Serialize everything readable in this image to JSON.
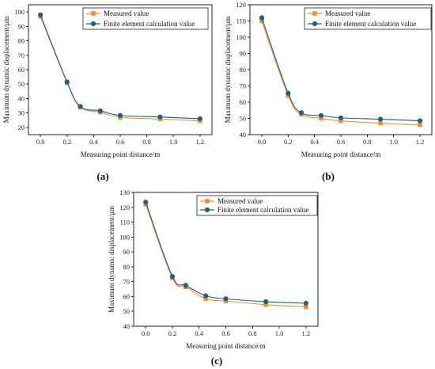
{
  "chart_data": [
    {
      "type": "line",
      "panel_label": "(a)",
      "xlabel": "Measuring point distance/m",
      "ylabel": "Maximum dynamic displacement/μm",
      "xlim": [
        -0.09,
        1.29
      ],
      "ylim": [
        15,
        105
      ],
      "xticks": [
        "0.0",
        "0.2",
        "0.4",
        "0.6",
        "0.8",
        "1.0",
        "1.2"
      ],
      "yticks": [
        "20",
        "30",
        "40",
        "50",
        "60",
        "70",
        "80",
        "90",
        "100"
      ],
      "x": [
        0,
        0.2,
        0.3,
        0.45,
        0.6,
        0.9,
        1.2
      ],
      "legend_position": "top-right",
      "series": [
        {
          "name": "Measured value",
          "values": [
            97,
            51,
            34,
            30.5,
            27,
            25.8,
            24.5
          ],
          "color": "#F28E2B",
          "marker": "square"
        },
        {
          "name": "Finite element calculation value",
          "values": [
            98,
            51.5,
            34.5,
            31.5,
            28.3,
            27.2,
            26
          ],
          "color": "#1F5F7F",
          "marker": "circle"
        }
      ]
    },
    {
      "type": "line",
      "panel_label": "(b)",
      "xlabel": "Measuring point distance/m",
      "ylabel": "Maximum dynamic displacement/μm",
      "xlim": [
        -0.09,
        1.29
      ],
      "ylim": [
        40,
        120
      ],
      "xticks": [
        "0.0",
        "0.2",
        "0.4",
        "0.6",
        "0.8",
        "1.0",
        "1.2"
      ],
      "yticks": [
        "40",
        "50",
        "60",
        "70",
        "80",
        "90",
        "100",
        "110",
        "120"
      ],
      "x": [
        0,
        0.2,
        0.3,
        0.45,
        0.6,
        0.9,
        1.2
      ],
      "legend_position": "top-right",
      "series": [
        {
          "name": "Measured value",
          "values": [
            110,
            64,
            52.5,
            50,
            48.5,
            47,
            46
          ],
          "color": "#F28E2B",
          "marker": "square"
        },
        {
          "name": "Finite element calculation value",
          "values": [
            112,
            65.5,
            53.5,
            51.8,
            50.3,
            49.5,
            48.5
          ],
          "color": "#1F5F7F",
          "marker": "circle"
        }
      ]
    },
    {
      "type": "line",
      "panel_label": "(c)",
      "xlabel": "Measuring point distance/m",
      "ylabel": "Maximum dynamic displacement/μm",
      "xlim": [
        -0.09,
        1.29
      ],
      "ylim": [
        40,
        130
      ],
      "xticks": [
        "0.0",
        "0.2",
        "0.4",
        "0.6",
        "0.8",
        "1.0",
        "1.2"
      ],
      "yticks": [
        "40",
        "50",
        "60",
        "70",
        "80",
        "90",
        "100",
        "110",
        "120",
        "130"
      ],
      "x": [
        0,
        0.2,
        0.3,
        0.45,
        0.6,
        0.9,
        1.2
      ],
      "legend_position": "top-right",
      "series": [
        {
          "name": "Measured value",
          "values": [
            122,
            72.5,
            66.5,
            58.5,
            57,
            54.5,
            53
          ],
          "color": "#F28E2B",
          "marker": "square"
        },
        {
          "name": "Finite element calculation value",
          "values": [
            123.5,
            73.5,
            67.5,
            60.5,
            58.5,
            56.5,
            55.5
          ],
          "color": "#1F5F7F",
          "marker": "circle"
        }
      ]
    }
  ]
}
